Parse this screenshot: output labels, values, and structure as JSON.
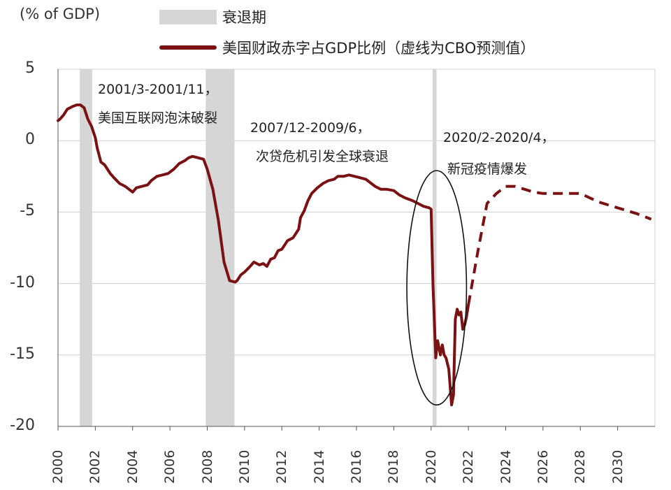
{
  "chart_data": {
    "type": "line",
    "unit_label": "(% of GDP)",
    "legend": {
      "recession_label": "衰退期",
      "series_label": "美国财政赤字占GDP比例（虚线为CBO预测值）"
    },
    "colors": {
      "line": "#7b1113",
      "recession": "#d6d6d6",
      "grid": "#d0d0d0",
      "ellipse": "#111111"
    },
    "ylim": [
      -20,
      5
    ],
    "yticks": [
      5,
      0,
      -5,
      -10,
      -15,
      -20
    ],
    "xlim": [
      2000,
      2032
    ],
    "xticks": [
      2000,
      2002,
      2004,
      2006,
      2008,
      2010,
      2012,
      2014,
      2016,
      2018,
      2020,
      2022,
      2024,
      2026,
      2028,
      2030
    ],
    "grid": true,
    "recessions": [
      {
        "start": 2001.17,
        "end": 2001.83
      },
      {
        "start": 2007.92,
        "end": 2009.46
      },
      {
        "start": 2020.08,
        "end": 2020.29
      }
    ],
    "series": [
      {
        "name": "美国财政赤字占GDP比例",
        "style": "solid",
        "x": [
          2000.0,
          2000.1,
          2000.3,
          2000.5,
          2000.8,
          2001.0,
          2001.2,
          2001.4,
          2001.6,
          2001.8,
          2002.0,
          2002.1,
          2002.3,
          2002.5,
          2002.8,
          2003.0,
          2003.3,
          2003.6,
          2004.0,
          2004.2,
          2004.5,
          2004.8,
          2005.0,
          2005.3,
          2005.6,
          2005.9,
          2006.2,
          2006.5,
          2006.8,
          2007.0,
          2007.2,
          2007.5,
          2007.8,
          2008.0,
          2008.3,
          2008.6,
          2008.9,
          2009.2,
          2009.5,
          2009.6,
          2009.8,
          2010.0,
          2010.3,
          2010.5,
          2010.8,
          2011.0,
          2011.2,
          2011.4,
          2011.6,
          2011.8,
          2012.0,
          2012.3,
          2012.6,
          2012.9,
          2013.0,
          2013.2,
          2013.4,
          2013.6,
          2013.9,
          2014.2,
          2014.5,
          2014.8,
          2015.0,
          2015.3,
          2015.6,
          2015.9,
          2016.2,
          2016.5,
          2016.8,
          2017.0,
          2017.3,
          2017.6,
          2018.0,
          2018.3,
          2018.6,
          2019.0,
          2019.3,
          2019.6,
          2019.9,
          2020.0,
          2020.1,
          2020.25,
          2020.35,
          2020.5,
          2020.6,
          2020.7,
          2020.8,
          2020.95,
          2021.1,
          2021.2,
          2021.3,
          2021.4,
          2021.5,
          2021.6,
          2021.7,
          2021.8,
          2021.9,
          2022.0
        ],
        "y": [
          1.4,
          1.5,
          1.8,
          2.2,
          2.4,
          2.5,
          2.5,
          2.3,
          1.5,
          1.0,
          0.2,
          -0.5,
          -1.5,
          -1.7,
          -2.3,
          -2.6,
          -3.0,
          -3.2,
          -3.6,
          -3.3,
          -3.2,
          -3.1,
          -2.8,
          -2.5,
          -2.4,
          -2.3,
          -2.0,
          -1.6,
          -1.4,
          -1.2,
          -1.1,
          -1.2,
          -1.3,
          -2.0,
          -3.4,
          -5.6,
          -8.5,
          -9.8,
          -9.9,
          -9.8,
          -9.4,
          -9.2,
          -8.8,
          -8.5,
          -8.7,
          -8.6,
          -8.8,
          -8.3,
          -8.2,
          -7.7,
          -7.6,
          -7.0,
          -6.8,
          -6.2,
          -5.4,
          -4.9,
          -4.2,
          -3.7,
          -3.3,
          -3.0,
          -2.8,
          -2.7,
          -2.5,
          -2.5,
          -2.4,
          -2.5,
          -2.6,
          -2.7,
          -3.0,
          -3.2,
          -3.4,
          -3.4,
          -3.5,
          -3.8,
          -4.0,
          -4.2,
          -4.4,
          -4.6,
          -4.7,
          -4.8,
          -10.0,
          -15.2,
          -14.0,
          -15.0,
          -14.3,
          -15.0,
          -15.2,
          -16.0,
          -18.5,
          -17.8,
          -12.5,
          -11.8,
          -12.2,
          -12.0,
          -13.2,
          -12.9,
          -12.3,
          -11.5
        ]
      },
      {
        "name": "CBO预测值",
        "style": "dashed",
        "x": [
          2022.0,
          2022.5,
          2023.0,
          2023.5,
          2024.0,
          2024.5,
          2025.0,
          2025.5,
          2026.0,
          2027.0,
          2028.0,
          2029.0,
          2030.0,
          2031.0,
          2031.8
        ],
        "y": [
          -11.5,
          -7.8,
          -4.4,
          -3.7,
          -3.2,
          -3.2,
          -3.4,
          -3.6,
          -3.7,
          -3.7,
          -3.7,
          -4.3,
          -4.7,
          -5.1,
          -5.5
        ]
      }
    ],
    "annotations": [
      {
        "line1": "2001/3-2001/11，",
        "line2": "美国互联网泡沫破裂"
      },
      {
        "line1": "2007/12-2009/6，",
        "line2": "次贷危机引发全球衰退"
      },
      {
        "line1": "2020/2-2020/4，",
        "line2": "新冠疫情爆发"
      }
    ],
    "highlight_ellipse": {
      "cx": 2020.3,
      "cy": -10.3,
      "rx_years": 1.6,
      "ry_value": 8.2
    }
  }
}
